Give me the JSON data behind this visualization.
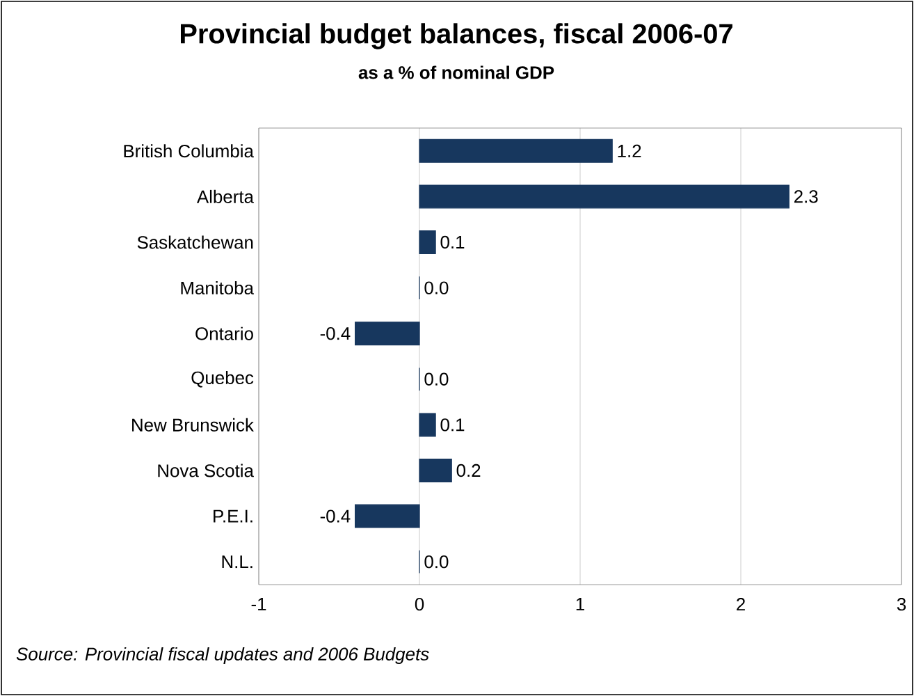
{
  "chart_data": {
    "type": "bar",
    "orientation": "horizontal",
    "title": "Provincial budget balances, fiscal 2006-07",
    "subtitle": "as a % of nominal GDP",
    "categories": [
      "British Columbia",
      "Alberta",
      "Saskatchewan",
      "Manitoba",
      "Ontario",
      "Quebec",
      "New Brunswick",
      "Nova Scotia",
      "P.E.I.",
      "N.L."
    ],
    "values": [
      1.2,
      2.3,
      0.1,
      0.0,
      -0.4,
      0.0,
      0.1,
      0.2,
      -0.4,
      0.0
    ],
    "color": "#17375e",
    "xlim": [
      -1,
      3
    ],
    "xticks": [
      -1,
      0,
      1,
      2,
      3
    ],
    "value_labels": [
      "1.2",
      "2.3",
      "0.1",
      "0.0",
      "-0.4",
      "0.0",
      "0.1",
      "0.2",
      "-0.4",
      "0.0"
    ],
    "grid": "x",
    "annotations": [
      "Source: Provincial fiscal updates and 2006 Budgets"
    ]
  }
}
